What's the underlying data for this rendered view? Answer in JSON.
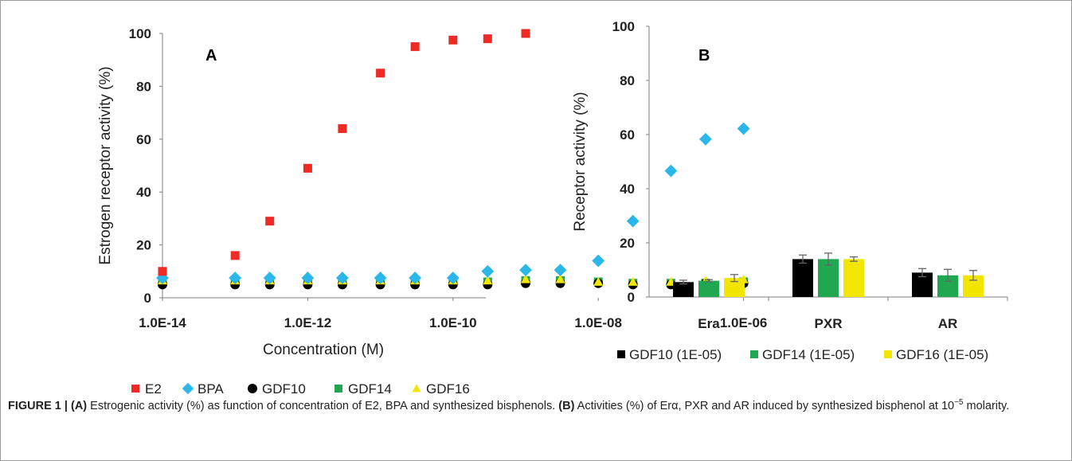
{
  "chart_data": [
    {
      "type": "scatter",
      "panel_label": "A",
      "xlabel": "Concentration (M)",
      "ylabel": "Estrogen receptor activity (%)",
      "xscale": "log",
      "xlim": [
        1e-14,
        3e-06
      ],
      "ylim": [
        0,
        100
      ],
      "xticks": [
        "1.0E-14",
        "1.0E-12",
        "1.0E-10",
        "1.0E-08",
        "1.0E-06"
      ],
      "yticks": [
        "0",
        "20",
        "40",
        "60",
        "80",
        "100"
      ],
      "legend_position": "bottom",
      "grid": false,
      "series": [
        {
          "name": "E2",
          "marker": "square",
          "color": "#ee2a24",
          "x": [
            1e-14,
            1e-13,
            3e-13,
            1e-12,
            3e-12,
            1e-11,
            3e-11,
            1e-10,
            3e-10,
            1e-09
          ],
          "y": [
            10,
            16,
            29,
            49,
            64,
            85,
            95,
            97.5,
            98,
            100
          ]
        },
        {
          "name": "BPA",
          "marker": "diamond",
          "color": "#2bb7ea",
          "x": [
            1e-14,
            1e-13,
            3e-13,
            1e-12,
            3e-12,
            1e-11,
            3e-11,
            1e-10,
            3e-10,
            1e-09,
            3e-09,
            1e-08,
            3e-08,
            1e-07,
            3e-07,
            1e-06
          ],
          "y": [
            7.5,
            7.5,
            7.5,
            7.5,
            7.5,
            7.5,
            7.5,
            7.5,
            10,
            10.5,
            10.5,
            14,
            29,
            48,
            60,
            64
          ]
        },
        {
          "name": "GDF10",
          "marker": "circle",
          "color": "#000000",
          "x": [
            1e-14,
            1e-13,
            3e-13,
            1e-12,
            3e-12,
            1e-11,
            3e-11,
            1e-10,
            3e-10,
            1e-09,
            3e-09,
            1e-08,
            3e-08,
            1e-07,
            3e-07,
            1e-06
          ],
          "y": [
            5,
            5,
            5,
            5,
            5,
            5,
            5,
            5,
            5,
            5.5,
            5.5,
            5.5,
            5,
            5,
            5.5,
            5.5
          ]
        },
        {
          "name": "GDF14",
          "marker": "square",
          "color": "#1fa84f",
          "x": [
            1e-14,
            1e-13,
            3e-13,
            1e-12,
            3e-12,
            1e-11,
            3e-11,
            1e-10,
            3e-10,
            1e-09,
            3e-09,
            1e-08,
            3e-08,
            1e-07,
            3e-07,
            1e-06
          ],
          "y": [
            6,
            6,
            6,
            6,
            6,
            6,
            6,
            6,
            6,
            6.5,
            6.5,
            6,
            5.5,
            5.5,
            5.5,
            6
          ]
        },
        {
          "name": "GDF16",
          "marker": "triangle",
          "color": "#f2e600",
          "x": [
            1e-14,
            1e-13,
            3e-13,
            1e-12,
            3e-12,
            1e-11,
            3e-11,
            1e-10,
            3e-10,
            1e-09,
            3e-09,
            1e-08,
            3e-08,
            1e-07,
            3e-07,
            1e-06
          ],
          "y": [
            6.5,
            6.5,
            6.5,
            6.5,
            6.5,
            6.5,
            6.5,
            6.5,
            6.5,
            7,
            7,
            6,
            6,
            6,
            6.5,
            7
          ]
        }
      ]
    },
    {
      "type": "bar",
      "panel_label": "B",
      "xlabel": "",
      "ylabel": "Receptor activity (%)",
      "ylim": [
        0,
        100
      ],
      "yticks": [
        "0",
        "20",
        "40",
        "60",
        "80",
        "100"
      ],
      "categories": [
        "Era",
        "PXR",
        "AR"
      ],
      "legend_position": "bottom",
      "grid": false,
      "series": [
        {
          "name": "GDF10 (1E-05)",
          "color": "#000000",
          "values": [
            5.5,
            14,
            9
          ],
          "errors": [
            0.7,
            1.5,
            1.5
          ]
        },
        {
          "name": "GDF14 (1E-05)",
          "color": "#1fa84f",
          "values": [
            6,
            14,
            8
          ],
          "errors": [
            0.4,
            2.2,
            2.2
          ]
        },
        {
          "name": "GDF16 (1E-05)",
          "color": "#f2e600",
          "values": [
            7,
            14,
            8
          ],
          "errors": [
            1.3,
            0.8,
            1.8
          ]
        }
      ]
    }
  ],
  "caption": {
    "lead": "FIGURE 1 | ",
    "label_a": "(A)",
    "text_a": " Estrogenic activity (%) as function of concentration of E2, BPA and synthesized bisphenols. ",
    "label_b": "(B)",
    "text_b1": " Activities (%) of Erα, PXR and AR induced by synthesized bisphenol at 10",
    "exponent": "−5",
    "text_b2": " molarity."
  }
}
